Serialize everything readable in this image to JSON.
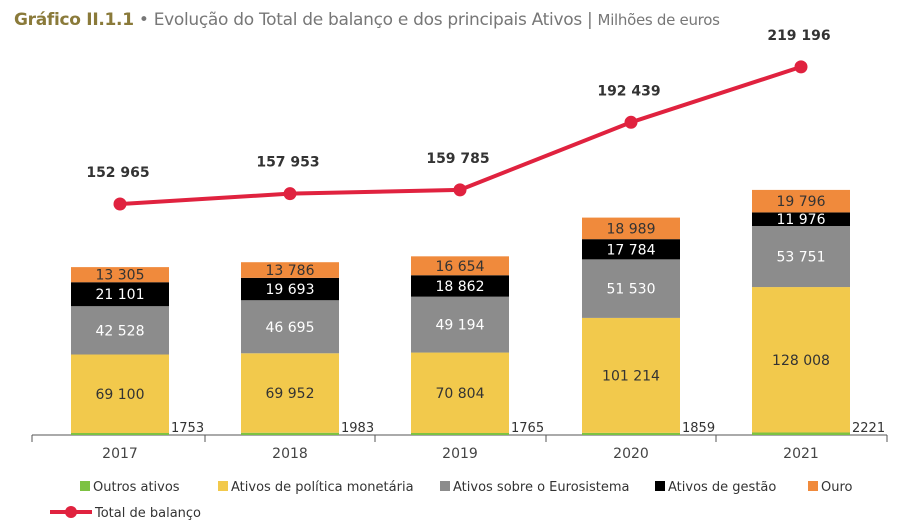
{
  "title": {
    "label": "Gráfico II.1.1",
    "sep": "•",
    "text": "Evolução do Total de balanço e dos principais Ativos",
    "bar": "|",
    "unit": "Milhões de euros"
  },
  "chart_data": {
    "type": "bar",
    "stacked": true,
    "categories": [
      "2017",
      "2018",
      "2019",
      "2020",
      "2021"
    ],
    "series": [
      {
        "name": "Outros ativos",
        "color": "#7dc242",
        "values": [
          1753,
          1983,
          1765,
          1859,
          2221
        ]
      },
      {
        "name": "Ativos de política monetária",
        "color": "#f2c94c",
        "values": [
          69100,
          69952,
          70804,
          101214,
          128008
        ]
      },
      {
        "name": "Ativos sobre o Eurosistema",
        "color": "#8c8c8c",
        "values": [
          42528,
          46695,
          49194,
          51530,
          53751
        ]
      },
      {
        "name": "Ativos de gestão",
        "color": "#000000",
        "values": [
          21101,
          19693,
          18862,
          17784,
          11976
        ]
      },
      {
        "name": "Ouro",
        "color": "#f08a3c",
        "values": [
          13305,
          13786,
          16654,
          18989,
          19796
        ]
      }
    ],
    "line": {
      "name": "Total de balanço",
      "type": "line",
      "color": "#e0223f",
      "values": [
        152965,
        157953,
        159785,
        192439,
        219196
      ],
      "labels": [
        "152 965",
        "157 953",
        "159 785",
        "192 439",
        "219 196"
      ]
    },
    "value_labels": [
      [
        "1753",
        "1983",
        "1765",
        "1859",
        "2221"
      ],
      [
        "69 100",
        "69 952",
        "70 804",
        "101 214",
        "128 008"
      ],
      [
        "42 528",
        "46 695",
        "49 194",
        "51 530",
        "53 751"
      ],
      [
        "21 101",
        "19 693",
        "18 862",
        "17 784",
        "11 976"
      ],
      [
        "13 305",
        "13 786",
        "16 654",
        "18 989",
        "19 796"
      ]
    ],
    "legend_position": "bottom",
    "grid": false
  }
}
